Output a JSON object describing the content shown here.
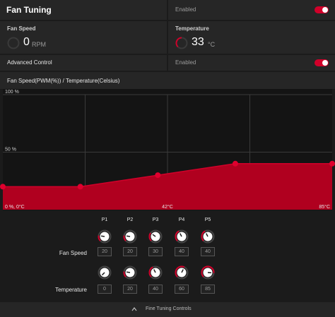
{
  "fan_tuning": {
    "title": "Fan Tuning",
    "status": "Enabled",
    "toggle_on": true
  },
  "fan_speed": {
    "label": "Fan Speed",
    "value": "0",
    "unit": "RPM"
  },
  "temperature": {
    "label": "Temperature",
    "value": "33",
    "unit": "°C"
  },
  "advanced_control": {
    "label": "Advanced Control",
    "status": "Enabled",
    "toggle_on": true
  },
  "colors": {
    "accent": "#d1002a",
    "chart_fill": "#b0001f",
    "panel": "#262626",
    "background": "#1b1b1b"
  },
  "chart_data": {
    "type": "area",
    "title": "Fan Speed(PWM(%)) / Temperature(Celsius)",
    "y_ticks": [
      "100 %",
      "50 %"
    ],
    "x_tick_labels": {
      "start": "0 %, 0°C",
      "mid": "42°C",
      "end": "85°C"
    },
    "xlim": [
      0,
      85
    ],
    "ylim": [
      0,
      100
    ],
    "grid": true,
    "points": [
      {
        "x": 0,
        "y": 20
      },
      {
        "x": 20,
        "y": 20
      },
      {
        "x": 40,
        "y": 30
      },
      {
        "x": 60,
        "y": 40
      },
      {
        "x": 85,
        "y": 40
      }
    ]
  },
  "fine_tuning": {
    "point_labels": [
      "P1",
      "P2",
      "P3",
      "P4",
      "P5"
    ],
    "fan_speed_label": "Fan Speed",
    "temperature_label": "Temperature",
    "fan_speed_values": [
      "20",
      "20",
      "30",
      "40",
      "40"
    ],
    "temperature_values": [
      "0",
      "20",
      "40",
      "60",
      "85"
    ],
    "footer_label": "Fine Tuning Controls"
  }
}
